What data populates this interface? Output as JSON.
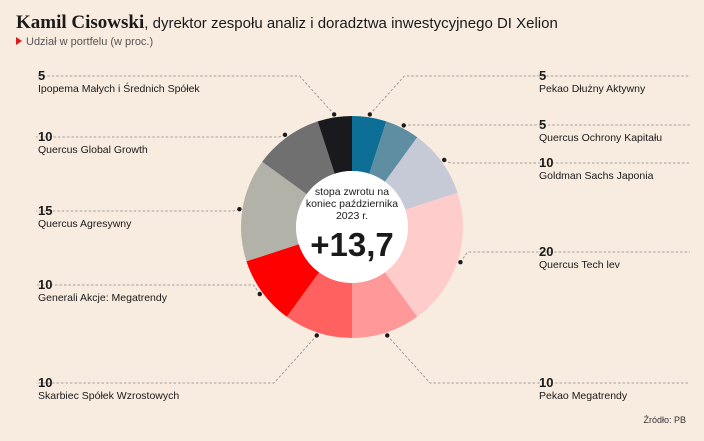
{
  "header": {
    "title_name": "Kamil Cisowski",
    "title_rest": ", dyrektor zespołu analiz i doradztwa inwestycyjnego DI Xelion",
    "subtitle": "Udział w portfelu (w proc.)"
  },
  "center": {
    "caption": "stopa zwrotu na koniec października 2023 r.",
    "value": "+13,7"
  },
  "source": "Źródło: PB",
  "chart_data": {
    "type": "pie",
    "title": "Kamil Cisowski, dyrektor zespołu analiz i doradztwa inwestycyjnego DI Xelion",
    "subtitle": "Udział w portfelu (w proc.)",
    "donut": true,
    "slices": [
      {
        "label": "Pekao Dłużny Aktywny",
        "value": 5,
        "display": "5",
        "color": "#0d6e96"
      },
      {
        "label": "Quercus Ochrony Kapitału",
        "value": 5,
        "display": "5",
        "color": "#5f8ea2"
      },
      {
        "label": "Goldman Sachs Japonia",
        "value": 10,
        "display": "10",
        "color": "#c6cad6"
      },
      {
        "label": "Quercus Tech lev",
        "value": 20,
        "display": "20",
        "color": "#ffcccc"
      },
      {
        "label": "Pekao Megatrendy",
        "value": 10,
        "display": "10",
        "color": "#ff9999"
      },
      {
        "label": "Skarbiec Spółek Wzrostowych",
        "value": 10,
        "display": "10",
        "color": "#ff6161"
      },
      {
        "label": "Generali Akcje: Megatrendy",
        "value": 10,
        "display": "10",
        "color": "#ff0000"
      },
      {
        "label": "Quercus Agresywny",
        "value": 15,
        "display": "15",
        "color": "#b2b2a8"
      },
      {
        "label": "Quercus Global Growth",
        "value": 10,
        "display": "10",
        "color": "#707070"
      },
      {
        "label": "Ipopema Małych i Średnich Spółek",
        "value": 5,
        "display": "5",
        "color": "#1a1a1e"
      }
    ]
  }
}
